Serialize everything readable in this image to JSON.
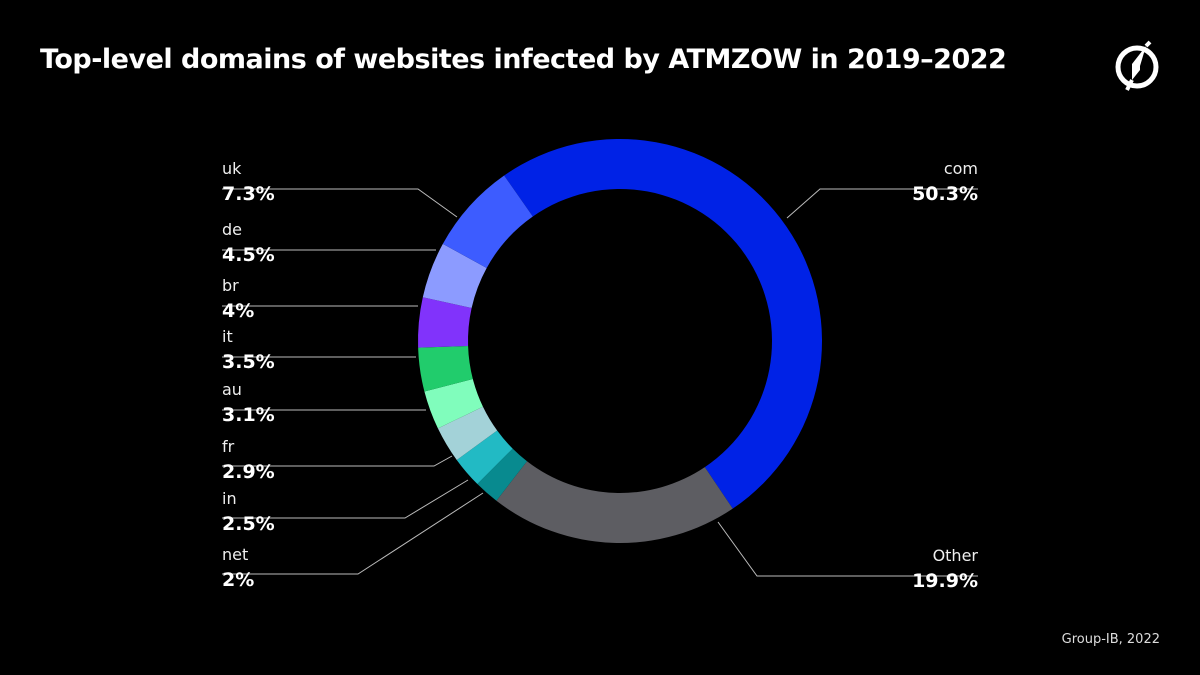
{
  "title": "Top-level domains of websites infected by ATMZOW in 2019–2022",
  "source": "Group-IB, 2022",
  "logo": "Group-IB",
  "chart_data": {
    "type": "pie",
    "donut": true,
    "title": "Top-level domains of websites infected by ATMZOW in 2019–2022",
    "categories": [
      "com",
      "Other",
      "net",
      "in",
      "fr",
      "au",
      "it",
      "br",
      "de",
      "uk"
    ],
    "values": [
      50.3,
      19.9,
      2,
      2.5,
      2.9,
      3.1,
      3.5,
      4,
      4.5,
      7.3
    ],
    "value_labels": [
      "50.3%",
      "19.9%",
      "2%",
      "2.5%",
      "2.9%",
      "3.1%",
      "3.5%",
      "4%",
      "4.5%",
      "7.3%"
    ],
    "colors": [
      "#0022e6",
      "#5d5d62",
      "#088a8f",
      "#22bac4",
      "#a3d2d8",
      "#80fdbc",
      "#21cc6c",
      "#8133fb",
      "#8c9bff",
      "#3d5cff"
    ],
    "legend": "leader-line labels"
  }
}
